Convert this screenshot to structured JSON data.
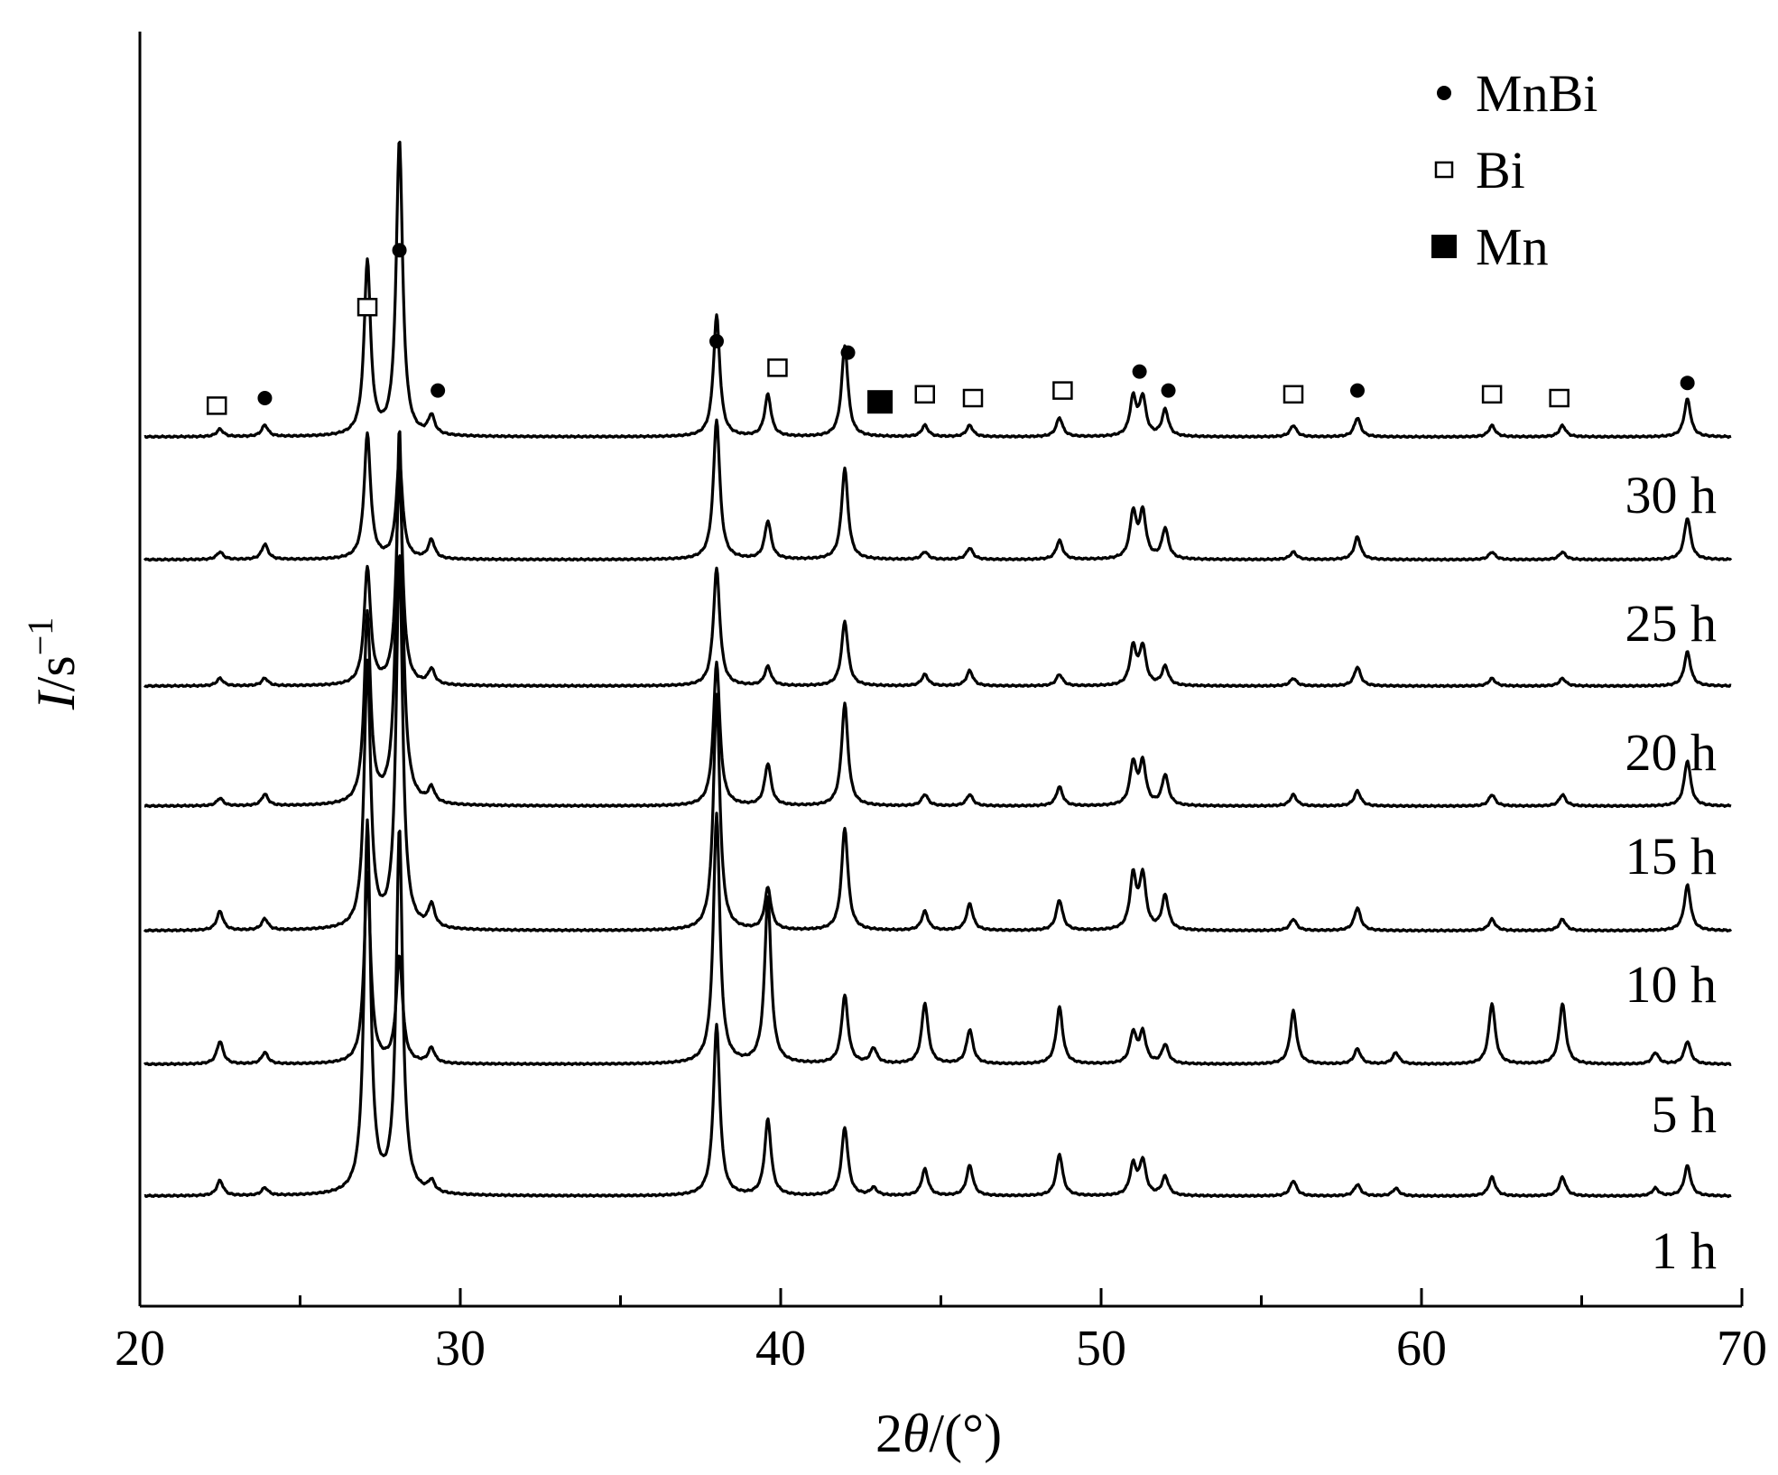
{
  "chart_data": {
    "type": "line",
    "title": "",
    "xlabel_parts": [
      "2",
      "θ",
      "/(°)"
    ],
    "ylabel_parts": [
      "I",
      "/s",
      "−1"
    ],
    "xlim": [
      20,
      70
    ],
    "xticks": [
      20,
      30,
      40,
      50,
      60,
      70
    ],
    "minor_xticks": [
      25,
      35,
      45,
      55,
      65
    ],
    "grid": false,
    "legend_position": "top-right",
    "legend": [
      {
        "marker": "filled-circle",
        "label": "MnBi"
      },
      {
        "marker": "open-square",
        "label": "Bi"
      },
      {
        "marker": "filled-square",
        "label": "Mn"
      }
    ],
    "series": [
      {
        "name": "1 h",
        "peaks": [
          [
            22.5,
            0.04
          ],
          [
            23.9,
            0.02
          ],
          [
            27.1,
            0.98
          ],
          [
            28.1,
            0.96
          ],
          [
            29.1,
            0.03
          ],
          [
            38.0,
            0.45
          ],
          [
            39.6,
            0.2
          ],
          [
            42.0,
            0.18
          ],
          [
            42.9,
            0.02
          ],
          [
            44.5,
            0.07
          ],
          [
            45.9,
            0.08
          ],
          [
            48.7,
            0.11
          ],
          [
            51.0,
            0.08
          ],
          [
            51.3,
            0.09
          ],
          [
            52.0,
            0.05
          ],
          [
            56.0,
            0.04
          ],
          [
            58.0,
            0.03
          ],
          [
            59.2,
            0.02
          ],
          [
            62.2,
            0.05
          ],
          [
            64.4,
            0.05
          ],
          [
            67.3,
            0.02
          ],
          [
            68.3,
            0.08
          ]
        ]
      },
      {
        "name": "5 h",
        "peaks": [
          [
            22.5,
            0.06
          ],
          [
            23.9,
            0.03
          ],
          [
            27.1,
            0.5
          ],
          [
            28.1,
            0.28
          ],
          [
            29.1,
            0.04
          ],
          [
            38.0,
            0.66
          ],
          [
            39.6,
            0.44
          ],
          [
            42.0,
            0.18
          ],
          [
            42.9,
            0.04
          ],
          [
            44.5,
            0.16
          ],
          [
            45.9,
            0.09
          ],
          [
            48.7,
            0.15
          ],
          [
            51.0,
            0.08
          ],
          [
            51.3,
            0.08
          ],
          [
            52.0,
            0.05
          ],
          [
            56.0,
            0.14
          ],
          [
            58.0,
            0.04
          ],
          [
            59.2,
            0.03
          ],
          [
            62.2,
            0.16
          ],
          [
            64.4,
            0.16
          ],
          [
            67.3,
            0.03
          ],
          [
            68.3,
            0.06
          ]
        ]
      },
      {
        "name": "10 h",
        "peaks": [
          [
            22.5,
            0.05
          ],
          [
            23.9,
            0.03
          ],
          [
            27.1,
            0.7
          ],
          [
            28.1,
            0.99
          ],
          [
            29.1,
            0.06
          ],
          [
            38.0,
            0.62
          ],
          [
            39.6,
            0.11
          ],
          [
            42.0,
            0.27
          ],
          [
            44.5,
            0.05
          ],
          [
            45.9,
            0.07
          ],
          [
            48.7,
            0.08
          ],
          [
            51.0,
            0.14
          ],
          [
            51.3,
            0.14
          ],
          [
            52.0,
            0.09
          ],
          [
            56.0,
            0.03
          ],
          [
            58.0,
            0.06
          ],
          [
            62.2,
            0.03
          ],
          [
            64.4,
            0.03
          ],
          [
            68.3,
            0.12
          ]
        ]
      },
      {
        "name": "15 h",
        "peaks": [
          [
            22.5,
            0.02
          ],
          [
            23.9,
            0.03
          ],
          [
            27.1,
            0.5
          ],
          [
            28.1,
            0.99
          ],
          [
            29.1,
            0.04
          ],
          [
            38.0,
            0.38
          ],
          [
            39.6,
            0.11
          ],
          [
            42.0,
            0.27
          ],
          [
            44.5,
            0.03
          ],
          [
            45.9,
            0.03
          ],
          [
            48.7,
            0.05
          ],
          [
            51.0,
            0.11
          ],
          [
            51.3,
            0.11
          ],
          [
            52.0,
            0.08
          ],
          [
            56.0,
            0.03
          ],
          [
            58.0,
            0.04
          ],
          [
            62.2,
            0.03
          ],
          [
            64.4,
            0.03
          ],
          [
            68.3,
            0.12
          ]
        ]
      },
      {
        "name": "20 h",
        "peaks": [
          [
            22.5,
            0.02
          ],
          [
            23.9,
            0.02
          ],
          [
            27.1,
            0.31
          ],
          [
            28.1,
            0.55
          ],
          [
            29.1,
            0.04
          ],
          [
            38.0,
            0.31
          ],
          [
            39.6,
            0.05
          ],
          [
            42.0,
            0.17
          ],
          [
            44.5,
            0.03
          ],
          [
            45.9,
            0.04
          ],
          [
            48.7,
            0.03
          ],
          [
            51.0,
            0.1
          ],
          [
            51.3,
            0.1
          ],
          [
            52.0,
            0.05
          ],
          [
            56.0,
            0.02
          ],
          [
            58.0,
            0.05
          ],
          [
            62.2,
            0.02
          ],
          [
            64.4,
            0.02
          ],
          [
            68.3,
            0.09
          ]
        ]
      },
      {
        "name": "25 h",
        "peaks": [
          [
            22.5,
            0.02
          ],
          [
            23.9,
            0.04
          ],
          [
            27.1,
            0.33
          ],
          [
            28.1,
            0.26
          ],
          [
            29.1,
            0.05
          ],
          [
            38.0,
            0.37
          ],
          [
            39.6,
            0.1
          ],
          [
            42.0,
            0.24
          ],
          [
            44.5,
            0.02
          ],
          [
            45.9,
            0.03
          ],
          [
            48.7,
            0.05
          ],
          [
            51.0,
            0.12
          ],
          [
            51.3,
            0.12
          ],
          [
            52.0,
            0.08
          ],
          [
            56.0,
            0.02
          ],
          [
            58.0,
            0.06
          ],
          [
            62.2,
            0.02
          ],
          [
            64.4,
            0.02
          ],
          [
            68.3,
            0.11
          ]
        ]
      },
      {
        "name": "30 h",
        "peaks": [
          [
            22.5,
            0.02
          ],
          [
            23.9,
            0.03
          ],
          [
            27.1,
            0.46
          ],
          [
            28.1,
            0.78
          ],
          [
            29.1,
            0.05
          ],
          [
            38.0,
            0.32
          ],
          [
            39.6,
            0.11
          ],
          [
            42.0,
            0.24
          ],
          [
            44.5,
            0.03
          ],
          [
            45.9,
            0.03
          ],
          [
            48.7,
            0.05
          ],
          [
            51.0,
            0.1
          ],
          [
            51.3,
            0.1
          ],
          [
            52.0,
            0.07
          ],
          [
            56.0,
            0.03
          ],
          [
            58.0,
            0.05
          ],
          [
            62.2,
            0.03
          ],
          [
            64.4,
            0.03
          ],
          [
            68.3,
            0.1
          ]
        ]
      }
    ],
    "phase_markers": [
      {
        "x": 22.4,
        "phase": "Bi",
        "h": 0.03
      },
      {
        "x": 23.9,
        "phase": "MnBi",
        "h": 0.05
      },
      {
        "x": 27.1,
        "phase": "Bi",
        "h": 0.29
      },
      {
        "x": 28.1,
        "phase": "MnBi",
        "h": 0.44
      },
      {
        "x": 29.3,
        "phase": "MnBi",
        "h": 0.07
      },
      {
        "x": 38.0,
        "phase": "MnBi",
        "h": 0.2
      },
      {
        "x": 39.9,
        "phase": "Bi",
        "h": 0.13
      },
      {
        "x": 42.1,
        "phase": "MnBi",
        "h": 0.17
      },
      {
        "x": 43.1,
        "phase": "Mn",
        "h": 0.04
      },
      {
        "x": 44.5,
        "phase": "Bi",
        "h": 0.06
      },
      {
        "x": 46.0,
        "phase": "Bi",
        "h": 0.05
      },
      {
        "x": 48.8,
        "phase": "Bi",
        "h": 0.07
      },
      {
        "x": 51.2,
        "phase": "MnBi",
        "h": 0.12
      },
      {
        "x": 52.1,
        "phase": "MnBi",
        "h": 0.07
      },
      {
        "x": 56.0,
        "phase": "Bi",
        "h": 0.06
      },
      {
        "x": 58.0,
        "phase": "MnBi",
        "h": 0.07
      },
      {
        "x": 62.2,
        "phase": "Bi",
        "h": 0.06
      },
      {
        "x": 64.3,
        "phase": "Bi",
        "h": 0.05
      },
      {
        "x": 68.3,
        "phase": "MnBi",
        "h": 0.09
      }
    ]
  }
}
